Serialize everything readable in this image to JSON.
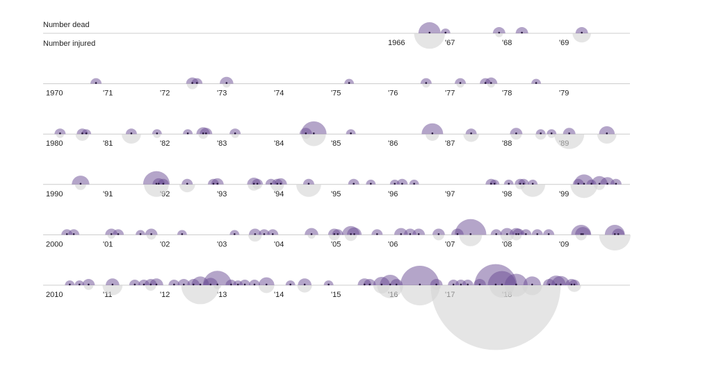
{
  "chart_data": {
    "type": "semicircle-timeline",
    "series": [
      {
        "name": "Number dead",
        "color": "#6a4c93",
        "values": [
          16,
          3,
          5,
          5,
          5,
          4,
          5,
          4,
          6,
          3,
          4,
          4,
          4,
          5,
          3,
          4,
          4,
          3,
          4,
          3,
          3,
          6,
          5,
          4,
          5,
          21,
          3,
          15,
          4,
          5,
          3,
          3,
          5,
          8,
          10,
          23,
          5,
          4,
          4,
          4,
          5,
          6,
          4,
          4,
          4,
          5,
          4,
          4,
          3,
          3,
          4,
          3,
          4,
          3,
          3,
          4,
          4,
          3,
          4,
          13,
          3,
          9,
          7,
          4,
          4,
          4,
          5,
          4,
          3,
          5,
          3,
          3,
          5,
          4,
          4,
          6,
          5,
          4,
          10,
          7,
          4,
          6,
          5,
          5,
          5,
          5,
          32,
          4,
          6,
          6,
          5,
          4,
          4,
          4,
          13,
          8,
          13,
          5,
          3,
          3,
          5,
          6,
          4,
          4,
          5,
          6,
          4,
          5,
          5,
          10,
          7,
          27,
          4,
          3,
          4,
          4,
          8,
          3,
          6,
          3,
          6,
          5,
          9,
          14,
          5,
          49,
          5,
          4,
          4,
          4,
          5,
          58,
          26,
          17,
          10,
          5,
          12,
          11,
          5,
          4
        ]
      },
      {
        "name": "Number injured",
        "color": "#d4d4d4",
        "values": [
          31,
          0,
          2,
          0,
          11,
          0,
          4,
          0,
          2,
          0,
          2,
          2,
          0,
          2,
          0,
          2,
          6,
          0,
          12,
          2,
          0,
          3,
          0,
          2,
          3,
          19,
          0,
          6,
          8,
          4,
          4,
          2,
          29,
          12,
          4,
          20,
          0,
          0,
          8,
          0,
          0,
          5,
          3,
          0,
          6,
          0,
          20,
          0,
          0,
          0,
          0,
          0,
          0,
          0,
          0,
          3,
          0,
          20,
          0,
          24,
          0,
          4,
          0,
          0,
          0,
          0,
          2,
          0,
          0,
          3,
          0,
          0,
          6,
          0,
          0,
          2,
          4,
          0,
          5,
          0,
          0,
          0,
          0,
          0,
          4,
          0,
          17,
          0,
          6,
          4,
          0,
          0,
          0,
          0,
          4,
          0,
          32,
          0,
          0,
          0,
          3,
          13,
          0,
          0,
          4,
          0,
          0,
          0,
          0,
          47,
          0,
          2,
          0,
          0,
          0,
          0,
          8,
          0,
          7,
          0,
          0,
          0,
          9,
          22,
          0,
          53,
          3,
          0,
          0,
          0,
          0,
          546,
          20,
          17,
          13,
          0,
          0,
          0,
          0,
          6
        ]
      }
    ],
    "x": [
      1966.68,
      1966.96,
      1967.9,
      1968.3,
      1969.35,
      1970.83,
      1972.52,
      1972.6,
      1973.12,
      1975.27,
      1976.62,
      1977.22,
      1977.66,
      1977.76,
      1978.55,
      1980.2,
      1980.59,
      1980.66,
      1981.45,
      1981.9,
      1982.44,
      1982.71,
      1982.76,
      1983.27,
      1984.51,
      1984.65,
      1985.3,
      1986.73,
      1987.41,
      1988.2,
      1988.63,
      1988.82,
      1989.13,
      1989.79,
      1990.56,
      1991.89,
      1991.93,
      1992.01,
      1992.43,
      1992.89,
      1992.96,
      1993.6,
      1993.66,
      1993.9,
      1994.01,
      1994.07,
      1994.56,
      1995.35,
      1995.65,
      1996.07,
      1996.2,
      1996.41,
      1997.76,
      1997.82,
      1998.07,
      1998.27,
      1998.33,
      1998.49,
      1999.29,
      1999.39,
      1999.52,
      1999.66,
      1999.8,
      1999.95,
      2000.32,
      2000.44,
      2001.1,
      2001.22,
      2001.61,
      2001.8,
      2002.34,
      2003.26,
      2003.62,
      2003.78,
      2003.93,
      2004.61,
      2005.01,
      2005.07,
      2005.3,
      2005.36,
      2005.76,
      2006.18,
      2006.34,
      2006.49,
      2006.84,
      2007.17,
      2007.4,
      2007.85,
      2008.04,
      2008.2,
      2008.24,
      2008.37,
      2008.57,
      2008.77,
      2009.34,
      2009.37,
      2009.93,
      2009.99,
      2010.37,
      2010.54,
      2010.7,
      2011.12,
      2011.51,
      2011.67,
      2011.79,
      2011.89,
      2012.2,
      2012.37,
      2012.54,
      2012.66,
      2012.84,
      2012.96,
      2013.2,
      2013.32,
      2013.44,
      2013.61,
      2013.82,
      2014.24,
      2014.49,
      2014.91,
      2015.54,
      2015.63,
      2015.84,
      2015.99,
      2016.1,
      2016.51,
      2016.8,
      2017.1,
      2017.23,
      2017.35,
      2017.56,
      2017.84,
      2017.95,
      2018.2,
      2018.48,
      2018.78,
      2018.9,
      2018.98,
      2019.17,
      2019.22
    ],
    "rows": [
      {
        "xlim": [
          1960,
          1970
        ],
        "xticks": [
          1966,
          {
            "value": 1967,
            "label": "'67"
          },
          {
            "value": 1968,
            "label": "'68"
          },
          {
            "value": 1969,
            "label": "'69"
          }
        ]
      },
      {
        "xlim": [
          1970,
          1980
        ],
        "xticks": [
          1970,
          {
            "value": 1971,
            "label": "'71"
          },
          {
            "value": 1972,
            "label": "'72"
          },
          {
            "value": 1973,
            "label": "'73"
          },
          {
            "value": 1974,
            "label": "'74"
          },
          {
            "value": 1975,
            "label": "'75"
          },
          {
            "value": 1976,
            "label": "'76"
          },
          {
            "value": 1977,
            "label": "'77"
          },
          {
            "value": 1978,
            "label": "'78"
          },
          {
            "value": 1979,
            "label": "'79"
          }
        ]
      },
      {
        "xlim": [
          1980,
          1990
        ],
        "xticks": [
          1980,
          {
            "value": 1981,
            "label": "'81"
          },
          {
            "value": 1982,
            "label": "'82"
          },
          {
            "value": 1983,
            "label": "'83"
          },
          {
            "value": 1984,
            "label": "'84"
          },
          {
            "value": 1985,
            "label": "'85"
          },
          {
            "value": 1986,
            "label": "'86"
          },
          {
            "value": 1987,
            "label": "'87"
          },
          {
            "value": 1988,
            "label": "'88"
          },
          {
            "value": 1989,
            "label": "'89"
          }
        ]
      },
      {
        "xlim": [
          1990,
          2000
        ],
        "xticks": [
          1990,
          {
            "value": 1991,
            "label": "'91"
          },
          {
            "value": 1992,
            "label": "'92"
          },
          {
            "value": 1993,
            "label": "'93"
          },
          {
            "value": 1994,
            "label": "'94"
          },
          {
            "value": 1995,
            "label": "'95"
          },
          {
            "value": 1996,
            "label": "'96"
          },
          {
            "value": 1997,
            "label": "'97"
          },
          {
            "value": 1998,
            "label": "'98"
          },
          {
            "value": 1999,
            "label": "'99"
          }
        ]
      },
      {
        "xlim": [
          2000,
          2010
        ],
        "xticks": [
          2000,
          {
            "value": 2001,
            "label": "'01"
          },
          {
            "value": 2002,
            "label": "'02"
          },
          {
            "value": 2003,
            "label": "'03"
          },
          {
            "value": 2004,
            "label": "'04"
          },
          {
            "value": 2005,
            "label": "'05"
          },
          {
            "value": 2006,
            "label": "'06"
          },
          {
            "value": 2007,
            "label": "'07"
          },
          {
            "value": 2008,
            "label": "'08"
          },
          {
            "value": 2009,
            "label": "'09"
          }
        ]
      },
      {
        "xlim": [
          2010,
          2020
        ],
        "xticks": [
          2010,
          {
            "value": 2011,
            "label": "'11"
          },
          {
            "value": 2012,
            "label": "'12"
          },
          {
            "value": 2013,
            "label": "'13"
          },
          {
            "value": 2014,
            "label": "'14"
          },
          {
            "value": 2015,
            "label": "'15"
          },
          {
            "value": 2016,
            "label": "'16"
          },
          {
            "value": 2017,
            "label": "'17"
          },
          {
            "value": 2018,
            "label": "'18"
          }
        ]
      }
    ]
  }
}
